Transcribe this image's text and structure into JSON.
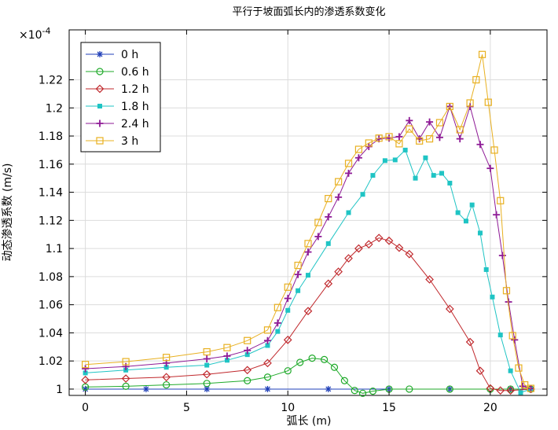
{
  "chart_data": {
    "type": "line",
    "title": "平行于坡面弧长内的渗透系数变化",
    "xlabel": "弧长 (m)",
    "ylabel": "动态渗透系数 (m/s)",
    "y_exponent_label": "×10",
    "y_exponent_power": "-4",
    "xlim": [
      -0.8,
      22.8
    ],
    "ylim": [
      0.9955,
      1.2555
    ],
    "x_ticks": [
      0,
      5,
      10,
      15,
      20
    ],
    "y_ticks": [
      1,
      1.02,
      1.04,
      1.06,
      1.08,
      1.1,
      1.12,
      1.14,
      1.16,
      1.18,
      1.2,
      1.22
    ],
    "grid": true,
    "legend_position": "top-left",
    "series": [
      {
        "name": "0 h",
        "color": "#1f3fb8",
        "marker": "star",
        "x": [
          0,
          3,
          6,
          9,
          12,
          15,
          18,
          21,
          22
        ],
        "y": [
          1,
          1,
          1,
          1,
          1,
          1,
          1,
          1,
          1
        ]
      },
      {
        "name": "0.6 h",
        "color": "#1faa2a",
        "marker": "circle",
        "x": [
          0,
          2,
          4,
          6,
          8,
          9,
          10,
          10.6,
          11.2,
          11.8,
          12.3,
          12.8,
          13.3,
          13.7,
          14.2,
          15,
          16,
          18,
          20,
          21,
          22
        ],
        "y": [
          1.0015,
          1.002,
          1.003,
          1.004,
          1.006,
          1.0085,
          1.013,
          1.019,
          1.022,
          1.021,
          1.0155,
          1.006,
          0.999,
          0.997,
          0.9985,
          1,
          1,
          1,
          1,
          1,
          1
        ]
      },
      {
        "name": "1.2 h",
        "color": "#c0282c",
        "marker": "diamond",
        "x": [
          0,
          2,
          4,
          6,
          8,
          9,
          10,
          11,
          12,
          12.5,
          13,
          13.5,
          14,
          14.5,
          15,
          15.5,
          16,
          17,
          18,
          19,
          19.5,
          20,
          20.5,
          21,
          22
        ],
        "y": [
          1.0065,
          1.0075,
          1.0085,
          1.0105,
          1.0135,
          1.0185,
          1.035,
          1.0555,
          1.075,
          1.0835,
          1.093,
          1.1,
          1.103,
          1.1075,
          1.1055,
          1.1005,
          1.096,
          1.078,
          1.057,
          1.0335,
          1.013,
          1.0005,
          0.999,
          0.999,
          1
        ]
      },
      {
        "name": "1.8 h",
        "color": "#1fc4c4",
        "marker": "square",
        "x": [
          0,
          2,
          4,
          6,
          7,
          8,
          9,
          9.5,
          10,
          10.5,
          11,
          12,
          13,
          13.7,
          14.2,
          14.8,
          15.3,
          15.8,
          16.3,
          16.8,
          17.2,
          17.6,
          18,
          18.4,
          18.8,
          19.1,
          19.5,
          19.8,
          20.1,
          20.5,
          21,
          21.5,
          22
        ],
        "y": [
          1.0115,
          1.0135,
          1.0155,
          1.017,
          1.0205,
          1.0245,
          1.031,
          1.041,
          1.056,
          1.07,
          1.081,
          1.1035,
          1.1255,
          1.1385,
          1.152,
          1.1625,
          1.163,
          1.17,
          1.15,
          1.1645,
          1.152,
          1.1535,
          1.1465,
          1.1255,
          1.1195,
          1.131,
          1.111,
          1.085,
          1.0655,
          1.0385,
          1.013,
          0.9975,
          1
        ]
      },
      {
        "name": "2.4 h",
        "color": "#8e1a96",
        "marker": "plus",
        "x": [
          0,
          2,
          4,
          6,
          7,
          8,
          9,
          9.5,
          10,
          10.5,
          11,
          11.5,
          12,
          12.5,
          13,
          13.5,
          14,
          14.5,
          15,
          15.5,
          16,
          16.5,
          17,
          17.5,
          18,
          18.5,
          19,
          19.5,
          20,
          20.3,
          20.6,
          20.9,
          21.2,
          21.6,
          22
        ],
        "y": [
          1.0145,
          1.016,
          1.0185,
          1.0215,
          1.0235,
          1.0275,
          1.0345,
          1.047,
          1.0645,
          1.0815,
          1.0975,
          1.1085,
          1.1225,
          1.1365,
          1.1535,
          1.1645,
          1.1725,
          1.178,
          1.1785,
          1.1795,
          1.191,
          1.178,
          1.19,
          1.179,
          1.201,
          1.178,
          1.201,
          1.174,
          1.157,
          1.124,
          1.095,
          1.062,
          1.035,
          1.002,
          1.0005
        ]
      },
      {
        "name": "3 h",
        "color": "#e8b020",
        "marker": "open-square",
        "x": [
          0,
          2,
          4,
          6,
          7,
          8,
          9,
          9.5,
          10,
          10.5,
          11,
          11.5,
          12,
          12.5,
          13,
          13.5,
          14,
          14.5,
          15,
          15.5,
          16,
          16.5,
          17,
          17.5,
          18,
          18.5,
          19,
          19.3,
          19.6,
          19.9,
          20.2,
          20.5,
          20.8,
          21.1,
          21.4,
          21.7,
          22
        ],
        "y": [
          1.0175,
          1.0195,
          1.0225,
          1.0265,
          1.0295,
          1.0345,
          1.042,
          1.058,
          1.0725,
          1.088,
          1.1035,
          1.1185,
          1.1355,
          1.1475,
          1.1605,
          1.1705,
          1.175,
          1.1785,
          1.1795,
          1.1745,
          1.185,
          1.1765,
          1.178,
          1.1895,
          1.201,
          1.1845,
          1.2035,
          1.22,
          1.238,
          1.204,
          1.17,
          1.134,
          1.07,
          1.038,
          1.015,
          1.003,
          1.0005
        ]
      }
    ]
  }
}
